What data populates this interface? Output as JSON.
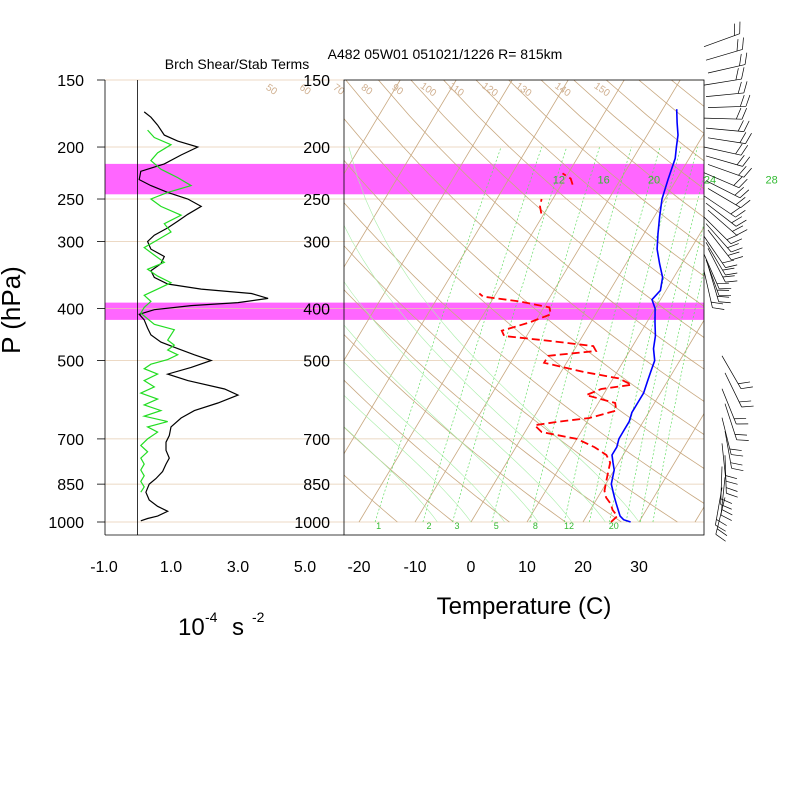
{
  "chart_data": [
    {
      "type": "line",
      "title": "Brch Shear/Stab Terms",
      "ylabel": "P (hPa)",
      "xlabel_base": "10",
      "xlabel_exp": "-4",
      "xlabel_unit": "s",
      "xlabel_unit_exp": "-2",
      "y_scale": "log",
      "ylim": [
        1000,
        150
      ],
      "xlim": [
        -1.0,
        5.0
      ],
      "xticks": [
        "-1.0",
        "1.0",
        "3.0",
        "5.0"
      ],
      "xtick_values": [
        -1.0,
        1.0,
        3.0,
        5.0
      ],
      "pressure_ticks": [
        150,
        200,
        250,
        300,
        400,
        500,
        700,
        850,
        1000
      ],
      "highlight_bands": [
        [
          215,
          245
        ],
        [
          390,
          420
        ]
      ],
      "series": [
        {
          "color": "#000000",
          "points": [
            [
              0.1,
              995
            ],
            [
              0.3,
              985
            ],
            [
              0.6,
              975
            ],
            [
              0.9,
              955
            ],
            [
              0.6,
              935
            ],
            [
              0.35,
              910
            ],
            [
              0.25,
              880
            ],
            [
              0.35,
              850
            ],
            [
              0.55,
              830
            ],
            [
              0.75,
              805
            ],
            [
              0.85,
              780
            ],
            [
              0.95,
              760
            ],
            [
              0.85,
              735
            ],
            [
              0.85,
              710
            ],
            [
              0.95,
              690
            ],
            [
              1.0,
              665
            ],
            [
              1.3,
              640
            ],
            [
              1.7,
              620
            ],
            [
              2.4,
              600
            ],
            [
              3.0,
              580
            ],
            [
              2.6,
              565
            ],
            [
              1.5,
              545
            ],
            [
              0.9,
              530
            ],
            [
              1.6,
              515
            ],
            [
              2.2,
              500
            ],
            [
              1.7,
              488
            ],
            [
              1.2,
              475
            ],
            [
              0.7,
              462
            ],
            [
              0.4,
              448
            ],
            [
              0.3,
              435
            ],
            [
              0.2,
              420
            ],
            [
              0.05,
              410
            ],
            [
              0.5,
              402
            ],
            [
              1.6,
              395
            ],
            [
              3.0,
              390
            ],
            [
              3.9,
              383
            ],
            [
              3.4,
              375
            ],
            [
              1.9,
              368
            ],
            [
              0.9,
              360
            ],
            [
              0.5,
              350
            ],
            [
              0.4,
              340
            ],
            [
              0.7,
              330
            ],
            [
              0.8,
              320
            ],
            [
              0.4,
              310
            ],
            [
              0.3,
              300
            ],
            [
              0.5,
              292
            ],
            [
              0.9,
              283
            ],
            [
              1.2,
              275
            ],
            [
              1.5,
              267
            ],
            [
              1.9,
              258
            ],
            [
              1.5,
              250
            ],
            [
              0.9,
              243
            ],
            [
              0.4,
              236
            ],
            [
              0.05,
              230
            ],
            [
              0.1,
              222
            ],
            [
              0.8,
              215
            ],
            [
              1.3,
              207
            ],
            [
              1.8,
              200
            ],
            [
              1.2,
              195
            ],
            [
              0.8,
              190
            ],
            [
              0.6,
              182
            ],
            [
              0.4,
              176
            ],
            [
              0.2,
              172
            ]
          ]
        },
        {
          "color": "#22dd22",
          "points": [
            [
              0.1,
              880
            ],
            [
              0.2,
              860
            ],
            [
              0.1,
              840
            ],
            [
              0.2,
              820
            ],
            [
              0.1,
              800
            ],
            [
              0.2,
              780
            ],
            [
              0.1,
              760
            ],
            [
              0.3,
              740
            ],
            [
              0.1,
              720
            ],
            [
              0.3,
              700
            ],
            [
              0.6,
              680
            ],
            [
              0.3,
              665
            ],
            [
              0.9,
              650
            ],
            [
              0.2,
              635
            ],
            [
              0.7,
              620
            ],
            [
              0.2,
              605
            ],
            [
              0.6,
              590
            ],
            [
              0.1,
              575
            ],
            [
              0.5,
              560
            ],
            [
              0.2,
              545
            ],
            [
              0.6,
              530
            ],
            [
              0.2,
              518
            ],
            [
              0.4,
              508
            ],
            [
              0.9,
              498
            ],
            [
              1.2,
              488
            ],
            [
              0.9,
              478
            ],
            [
              1.1,
              468
            ],
            [
              0.9,
              458
            ],
            [
              1.0,
              448
            ],
            [
              1.1,
              438
            ],
            [
              0.5,
              428
            ],
            [
              0.3,
              418
            ],
            [
              0.1,
              408
            ],
            [
              0.2,
              398
            ],
            [
              0.4,
              388
            ],
            [
              0.2,
              378
            ],
            [
              0.6,
              368
            ],
            [
              1.0,
              358
            ],
            [
              0.6,
              348
            ],
            [
              0.3,
              338
            ],
            [
              0.8,
              328
            ],
            [
              0.5,
              318
            ],
            [
              0.2,
              308
            ],
            [
              0.6,
              298
            ],
            [
              1.0,
              288
            ],
            [
              0.8,
              278
            ],
            [
              1.3,
              268
            ],
            [
              0.7,
              258
            ],
            [
              0.4,
              250
            ],
            [
              0.9,
              243
            ],
            [
              1.6,
              236
            ],
            [
              1.2,
              228
            ],
            [
              0.7,
              220
            ],
            [
              0.4,
              212
            ],
            [
              0.6,
              205
            ],
            [
              1.0,
              198
            ],
            [
              0.5,
              192
            ],
            [
              0.3,
              186
            ]
          ]
        }
      ]
    },
    {
      "type": "line",
      "subtype": "skew-t",
      "title": "A482 05W01 051021/1226 R= 815km",
      "xlabel": "Temperature (C)",
      "y_scale": "log",
      "ylim": [
        1000,
        150
      ],
      "xlim": [
        -23,
        42
      ],
      "xticks": [
        "-20",
        "-10",
        "0",
        "10",
        "20",
        "30"
      ],
      "xtick_values": [
        -20,
        -10,
        0,
        10,
        20,
        30
      ],
      "pressure_ticks": [
        150,
        200,
        250,
        300,
        400,
        500,
        700,
        850,
        1000
      ],
      "highlight_bands": [
        [
          215,
          245
        ],
        [
          390,
          420
        ]
      ],
      "mixing_ratio_labels": [
        "12",
        "16",
        "20",
        "24",
        "28",
        "32"
      ],
      "mixing_ratio_label_values": [
        -21,
        -13,
        -4,
        6,
        17,
        28
      ],
      "mixing_ratio_bottom_labels": [
        "1",
        "2",
        "3",
        "5",
        "8",
        "12",
        "20"
      ],
      "mixing_ratio_bottom_values": [
        -16.5,
        -7.5,
        -2.5,
        4.5,
        11.5,
        17.5,
        25.5
      ],
      "adiabat_labels": [
        "50",
        "60",
        "70",
        "80",
        "90",
        "100",
        "110",
        "120",
        "130",
        "140",
        "150"
      ],
      "adiabat_label_values": [
        -22,
        -16,
        -10,
        -5,
        0.5,
        6,
        11,
        17,
        23,
        30,
        37
      ],
      "series": [
        {
          "name_hidden": "temperature",
          "color": "#0000ff",
          "points": [
            [
              28.5,
              1000
            ],
            [
              27,
              990
            ],
            [
              26,
              975
            ],
            [
              25,
              950
            ],
            [
              24,
              925
            ],
            [
              23,
              900
            ],
            [
              22,
              875
            ],
            [
              21,
              850
            ],
            [
              20.5,
              825
            ],
            [
              20,
              800
            ],
            [
              19,
              775
            ],
            [
              18,
              750
            ],
            [
              18,
              725
            ],
            [
              17.5,
              700
            ],
            [
              17.5,
              675
            ],
            [
              17.5,
              650
            ],
            [
              17,
              625
            ],
            [
              17,
              600
            ],
            [
              17,
              575
            ],
            [
              16.5,
              550
            ],
            [
              16,
              525
            ],
            [
              15.5,
              500
            ],
            [
              14,
              475
            ],
            [
              13,
              450
            ],
            [
              11.5,
              425
            ],
            [
              10,
              400
            ],
            [
              8.5,
              385
            ],
            [
              9,
              370
            ],
            [
              8,
              350
            ],
            [
              6,
              330
            ],
            [
              4,
              310
            ],
            [
              2.5,
              290
            ],
            [
              1,
              270
            ],
            [
              -0.5,
              250
            ],
            [
              -1.5,
              230
            ],
            [
              -2.5,
              210
            ],
            [
              -3.5,
              200
            ],
            [
              -4.5,
              190
            ],
            [
              -6,
              180
            ],
            [
              -7.5,
              170
            ]
          ]
        },
        {
          "name_hidden": "dewpoint",
          "color": "#ff0000",
          "points": [
            [
              25,
              1000
            ],
            [
              25.5,
              975
            ],
            [
              24,
              950
            ],
            [
              23,
              925
            ],
            [
              21.5,
              900
            ],
            [
              20.5,
              875
            ],
            [
              20,
              850
            ],
            [
              19.5,
              825
            ],
            [
              19,
              800
            ],
            [
              18.5,
              775
            ],
            [
              17,
              750
            ],
            [
              14,
              725
            ],
            [
              10,
              700
            ],
            [
              3,
              680
            ],
            [
              1,
              660
            ],
            [
              5,
              650
            ],
            [
              10,
              640
            ],
            [
              14,
              620
            ],
            [
              13,
              600
            ],
            [
              7,
              580
            ],
            [
              9,
              565
            ],
            [
              14,
              555
            ],
            [
              11,
              540
            ],
            [
              4,
              525
            ],
            [
              -4,
              505
            ],
            [
              -4,
              490
            ],
            [
              4,
              480
            ],
            [
              3,
              470
            ],
            [
              -5,
              460
            ],
            [
              -14,
              450
            ],
            [
              -15,
              440
            ],
            [
              -11,
              425
            ],
            [
              -8,
              410
            ],
            [
              -9,
              398
            ],
            [
              -15,
              388
            ],
            [
              -22,
              380
            ],
            [
              -23,
              375
            ]
          ]
        },
        {
          "name_hidden": "dewpoint-upper",
          "color": "#ff0000",
          "points": [
            [
              -20.5,
              266
            ],
            [
              -21.5,
              258
            ],
            [
              -22,
              250
            ]
          ]
        },
        {
          "name_hidden": "dewpoint-upper-2",
          "color": "#ff0000",
          "points": [
            [
              -18,
              235
            ],
            [
              -19,
              229
            ],
            [
              -21,
              224
            ]
          ]
        }
      ]
    }
  ],
  "wind_barbs_upper_count": 28,
  "wind_barbs_lower_count": 12
}
